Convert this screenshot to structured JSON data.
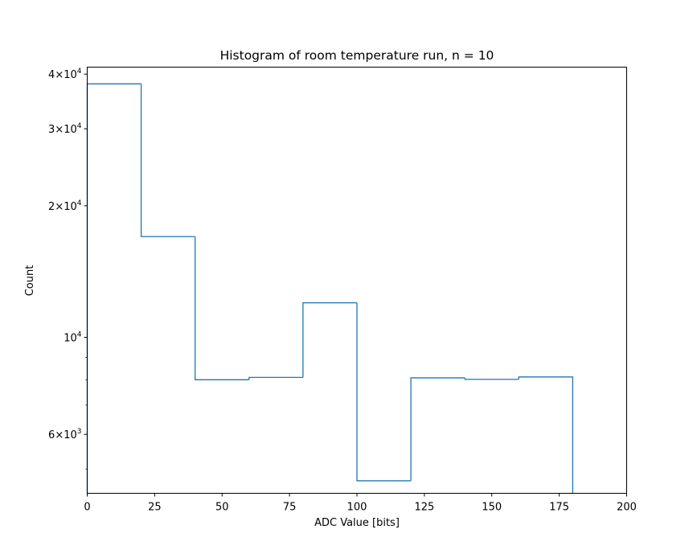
{
  "chart_data": {
    "type": "histogram",
    "title": "Histogram of room temperature run, n = 10",
    "xlabel": "ADC Value [bits]",
    "ylabel": "Count",
    "xlim": [
      0,
      200
    ],
    "ylim": [
      4400,
      41500
    ],
    "yscale": "log",
    "grid": false,
    "legend": false,
    "x_ticks": [
      "0",
      "25",
      "50",
      "75",
      "100",
      "125",
      "150",
      "175",
      "200"
    ],
    "y_ticks": [
      {
        "label": "4×10",
        "exp": "4",
        "value": 40000
      },
      {
        "label": "3×10",
        "exp": "4",
        "value": 30000
      },
      {
        "label": "2×10",
        "exp": "4",
        "value": 20000
      },
      {
        "label": "10",
        "exp": "4",
        "value": 10000
      },
      {
        "label": "6×10",
        "exp": "3",
        "value": 6000
      }
    ],
    "bin_edges": [
      0,
      20,
      40,
      60,
      80,
      100,
      120,
      140,
      160,
      180
    ],
    "counts": [
      38000,
      17000,
      8000,
      8100,
      12000,
      4700,
      8080,
      8020,
      8120
    ],
    "line_color": "#1f77b4"
  }
}
